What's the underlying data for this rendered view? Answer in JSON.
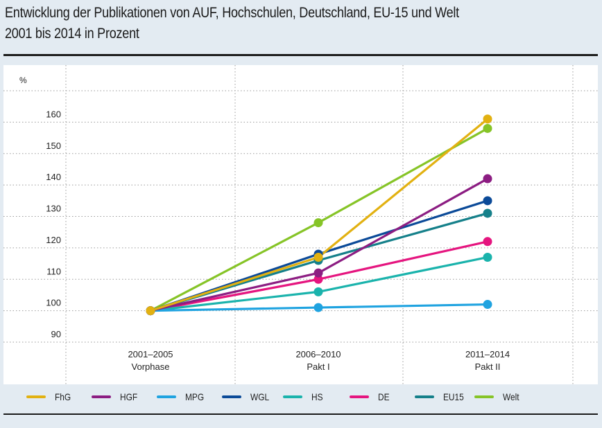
{
  "title_line1": "Entwicklung der Publikationen von AUF, Hochschulen, Deutschland, EU-15 und Welt",
  "title_line2": "2001 bis 2014 in Prozent",
  "chart_data": {
    "type": "line",
    "title": "Entwicklung der Publikationen von AUF, Hochschulen, Deutschland, EU-15 und Welt 2001 bis 2014 in Prozent",
    "ylabel": "%",
    "xlabel": "",
    "ylim": [
      90,
      170
    ],
    "yticks": [
      90,
      100,
      110,
      120,
      130,
      140,
      150,
      160
    ],
    "grid": true,
    "legend_position": "bottom",
    "categories": [
      {
        "period": "2001–2005",
        "phase": "Vorphase"
      },
      {
        "period": "2006–2010",
        "phase": "Pakt I"
      },
      {
        "period": "2011–2014",
        "phase": "Pakt II"
      }
    ],
    "series": [
      {
        "name": "FhG",
        "color": "#e2b111",
        "values": [
          100,
          117,
          161
        ]
      },
      {
        "name": "HGF",
        "color": "#8c1d82",
        "values": [
          100,
          112,
          142
        ]
      },
      {
        "name": "MPG",
        "color": "#1fa3e0",
        "values": [
          100,
          101,
          102
        ]
      },
      {
        "name": "WGL",
        "color": "#0b4a98",
        "values": [
          100,
          118,
          135
        ]
      },
      {
        "name": "HS",
        "color": "#1ab3ac",
        "values": [
          100,
          106,
          117
        ]
      },
      {
        "name": "DE",
        "color": "#e5157f",
        "values": [
          100,
          110,
          122
        ]
      },
      {
        "name": "EU15",
        "color": "#15808a",
        "values": [
          100,
          116,
          131
        ]
      },
      {
        "name": "Welt",
        "color": "#86c427",
        "values": [
          100,
          128,
          158
        ]
      }
    ]
  }
}
